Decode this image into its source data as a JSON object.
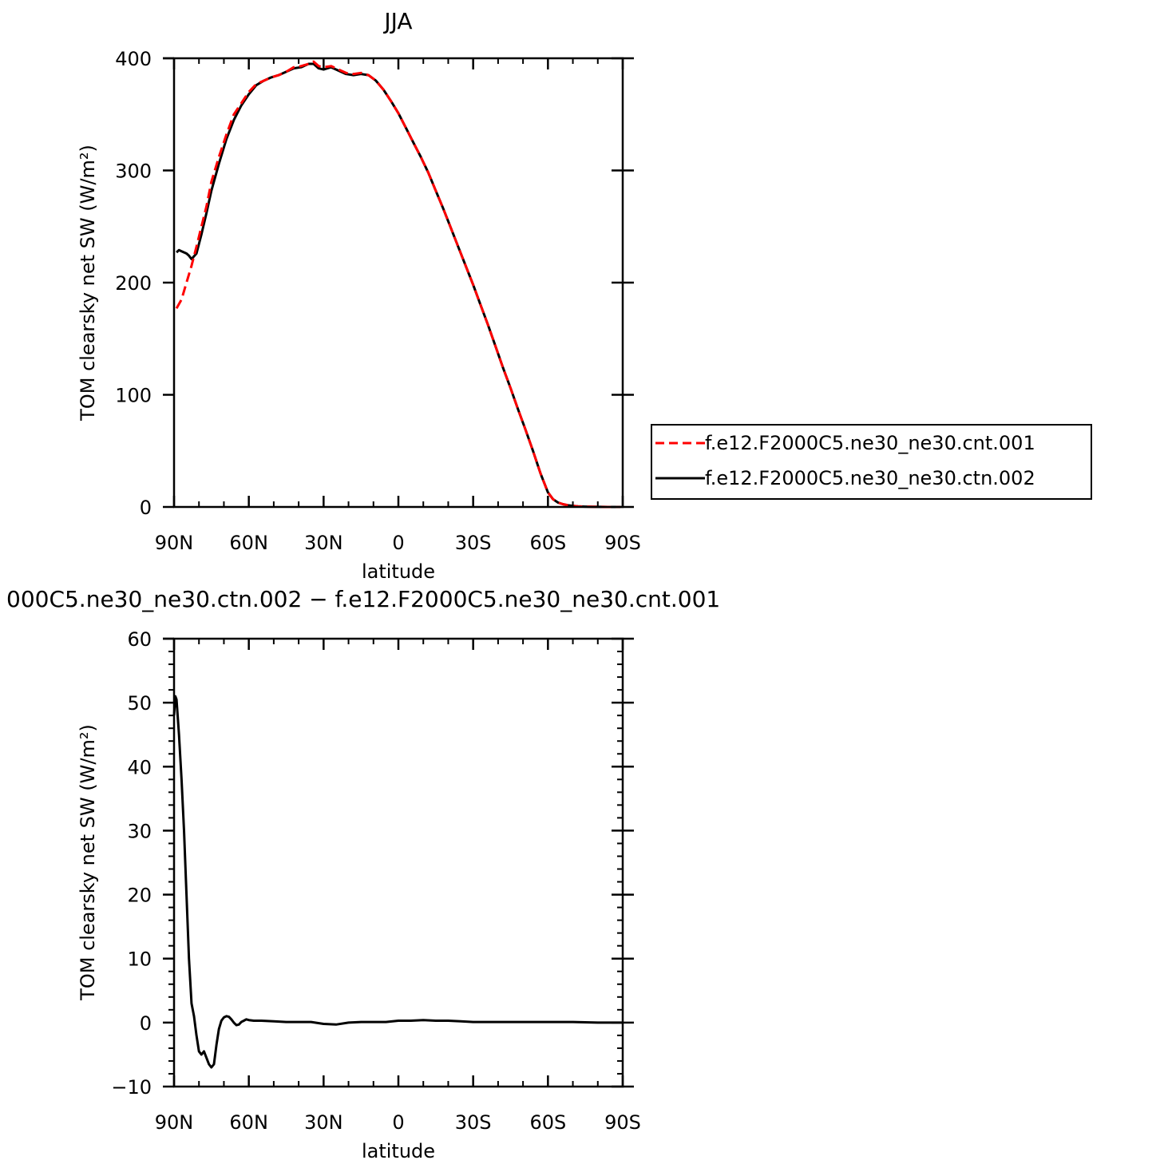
{
  "chart_data": [
    {
      "type": "line",
      "title": "JJA",
      "xlabel": "latitude",
      "ylabel": "TOM clearsky net SW (W/m²)",
      "xlim": [
        90,
        -90
      ],
      "ylim": [
        0,
        400
      ],
      "x_tick_values": [
        90,
        60,
        30,
        0,
        -30,
        -60,
        -90
      ],
      "x_tick_labels": [
        "90N",
        "60N",
        "30N",
        "0",
        "30S",
        "60S",
        "90S"
      ],
      "y_tick_values": [
        0,
        100,
        200,
        300,
        400
      ],
      "y_tick_labels": [
        "0",
        "100",
        "200",
        "300",
        "400"
      ],
      "grid": false,
      "legend": {
        "placement": "right"
      },
      "series": [
        {
          "name": "f.e12.F2000C5.ne30_ne30.cnt.001",
          "color": "#ff0000",
          "dash": "dashed",
          "x": [
            89,
            87,
            85,
            83,
            81,
            79,
            77,
            75,
            72,
            69,
            66,
            63,
            60,
            57,
            54,
            51,
            48,
            45,
            42,
            39,
            36,
            34,
            32,
            30,
            27,
            24,
            21,
            18,
            15,
            12,
            9,
            6,
            3,
            0,
            -3,
            -6,
            -9,
            -12,
            -15,
            -18,
            -21,
            -24,
            -27,
            -30,
            -33,
            -36,
            -39,
            -42,
            -45,
            -48,
            -51,
            -54,
            -57,
            -60,
            -62,
            -64,
            -66,
            -68,
            -70,
            -72,
            -75,
            -78,
            -81,
            -84,
            -87,
            -89
          ],
          "y": [
            177,
            185,
            200,
            215,
            232,
            250,
            268,
            290,
            312,
            332,
            350,
            360,
            370,
            377,
            380,
            383,
            385,
            388,
            392,
            393,
            395,
            397,
            393,
            392,
            393,
            390,
            387,
            386,
            387,
            385,
            380,
            372,
            362,
            351,
            338,
            325,
            312,
            298,
            282,
            266,
            249,
            232,
            215,
            198,
            180,
            162,
            143,
            124,
            106,
            87,
            69,
            50,
            30,
            13,
            7,
            4,
            2.5,
            1.5,
            1,
            0.5,
            0.3,
            0.2,
            0.1,
            0,
            0,
            0
          ]
        },
        {
          "name": "f.e12.F2000C5.ne30_ne30.ctn.002",
          "color": "#000000",
          "dash": "solid",
          "x": [
            89,
            88,
            87,
            86,
            85,
            84,
            83,
            81,
            79,
            77,
            75,
            72,
            69,
            66,
            63,
            60,
            57,
            54,
            51,
            48,
            45,
            42,
            39,
            36,
            34,
            32,
            30,
            27,
            24,
            21,
            18,
            15,
            12,
            9,
            6,
            3,
            0,
            -3,
            -6,
            -9,
            -12,
            -15,
            -18,
            -21,
            -24,
            -27,
            -30,
            -33,
            -36,
            -39,
            -42,
            -45,
            -48,
            -51,
            -54,
            -57,
            -60,
            -62,
            -64,
            -66,
            -68,
            -70,
            -72,
            -75,
            -78,
            -81,
            -84,
            -87,
            -89
          ],
          "y": [
            227,
            229,
            228,
            227,
            226,
            224,
            221,
            226,
            243,
            262,
            282,
            306,
            328,
            345,
            358,
            368,
            376,
            380,
            383,
            385,
            388,
            391,
            392,
            395,
            395,
            391,
            390,
            392,
            389,
            386,
            385,
            386,
            385,
            380,
            372,
            362,
            351,
            338,
            325,
            312,
            298,
            282,
            266,
            249,
            232,
            215,
            198,
            180,
            162,
            143,
            124,
            106,
            87,
            69,
            50,
            30,
            13,
            7,
            4,
            2.5,
            1.5,
            1,
            0.5,
            0.3,
            0.2,
            0.1,
            0,
            0,
            0
          ]
        }
      ]
    },
    {
      "type": "line",
      "title": "000C5.ne30_ne30.ctn.002 − f.e12.F2000C5.ne30_ne30.cnt.001",
      "xlabel": "latitude",
      "ylabel": "TOM clearsky net SW (W/m²)",
      "xlim": [
        90,
        -90
      ],
      "ylim": [
        -10,
        60
      ],
      "x_tick_values": [
        90,
        60,
        30,
        0,
        -30,
        -60,
        -90
      ],
      "x_tick_labels": [
        "90N",
        "60N",
        "30N",
        "0",
        "30S",
        "60S",
        "90S"
      ],
      "y_tick_values": [
        -10,
        0,
        10,
        20,
        30,
        40,
        50,
        60
      ],
      "y_tick_labels": [
        "−10",
        "0",
        "10",
        "20",
        "30",
        "40",
        "50",
        "60"
      ],
      "grid": false,
      "series": [
        {
          "color": "#000000",
          "dash": "solid",
          "x": [
            90,
            89.5,
            89,
            88,
            87,
            86,
            85,
            84,
            83,
            82,
            81,
            80,
            79,
            78,
            77,
            76,
            75,
            74,
            73,
            72,
            71,
            70,
            69,
            68,
            67,
            66,
            65,
            64,
            63,
            62,
            61,
            60,
            58,
            55,
            50,
            45,
            40,
            35,
            30,
            25,
            20,
            15,
            10,
            5,
            0,
            -5,
            -10,
            -15,
            -20,
            -25,
            -30,
            -40,
            -50,
            -60,
            -70,
            -80,
            -90
          ],
          "y": [
            48,
            51,
            50.5,
            45,
            38,
            30,
            20,
            10,
            3,
            1,
            -2,
            -4.5,
            -5,
            -4.5,
            -5.5,
            -6.5,
            -7,
            -6.5,
            -3.5,
            -1,
            0.3,
            0.8,
            1,
            0.9,
            0.5,
            0,
            -0.4,
            -0.3,
            0.1,
            0.3,
            0.5,
            0.4,
            0.3,
            0.3,
            0.2,
            0.1,
            0.1,
            0.1,
            -0.2,
            -0.3,
            0,
            0.1,
            0.1,
            0.1,
            0.3,
            0.3,
            0.4,
            0.3,
            0.3,
            0.2,
            0.1,
            0.1,
            0.1,
            0.1,
            0.1,
            0,
            0
          ]
        }
      ]
    }
  ]
}
